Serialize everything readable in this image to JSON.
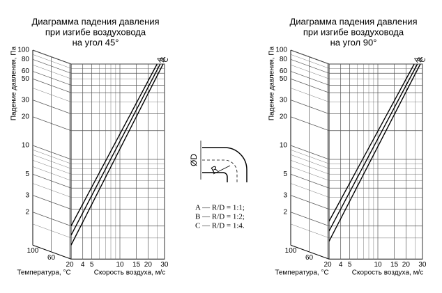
{
  "chart_data": [
    {
      "type": "nomogram",
      "title": [
        "Диаграмма  падения давления",
        "при изгибе воздуховода",
        "на угол 45°"
      ],
      "y_label": "Падение давления, Па",
      "x_label": "Скорость воздуха, м/с",
      "t_label": "Температура, °С",
      "log_scale": true,
      "grid": true,
      "ylim": [
        0.9,
        100
      ],
      "yticks": [
        100,
        80,
        60,
        50,
        30,
        20,
        10,
        5,
        3,
        2
      ],
      "y_minor_ticks": [
        90,
        70,
        40,
        9,
        8,
        7,
        6,
        4,
        1.5
      ],
      "xlim": [
        3,
        30
      ],
      "xticks": [
        4,
        5,
        10,
        15,
        20,
        30
      ],
      "x_minor_ticks": [
        6,
        7,
        8,
        9,
        25
      ],
      "tlim": [
        100,
        20
      ],
      "tticks": [
        100,
        60,
        20
      ],
      "series": [
        {
          "name": "A",
          "color": "#000000",
          "x": [
            3,
            25
          ],
          "values": [
            2.0,
            100
          ]
        },
        {
          "name": "B",
          "color": "#000000",
          "x": [
            3,
            27
          ],
          "values": [
            1.6,
            100
          ]
        },
        {
          "name": "C",
          "color": "#000000",
          "x": [
            3,
            29
          ],
          "values": [
            1.26,
            100
          ]
        }
      ]
    },
    {
      "type": "nomogram",
      "title": [
        "Диаграмма  падения давления",
        "при изгибе воздуховода",
        "на угол 90°"
      ],
      "y_label": "Падение давления, Па",
      "x_label": "Скорость воздуха, м/с",
      "t_label": "Температура, °С",
      "log_scale": true,
      "grid": true,
      "ylim": [
        0.9,
        100
      ],
      "yticks": [
        100,
        80,
        60,
        50,
        30,
        20,
        10,
        5,
        3,
        2
      ],
      "y_minor_ticks": [
        90,
        70,
        40,
        9,
        8,
        7,
        6,
        4,
        1.5
      ],
      "xlim": [
        3,
        30
      ],
      "xticks": [
        4,
        5,
        10,
        15,
        20,
        30
      ],
      "x_minor_ticks": [
        6,
        7,
        8,
        9,
        25
      ],
      "tlim": [
        100,
        20
      ],
      "tticks": [
        100,
        60,
        20
      ],
      "series": [
        {
          "name": "A",
          "color": "#000000",
          "x": [
            3,
            24.5
          ],
          "values": [
            2.24,
            100
          ]
        },
        {
          "name": "B",
          "color": "#000000",
          "x": [
            3,
            26.5
          ],
          "values": [
            1.77,
            100
          ]
        },
        {
          "name": "C",
          "color": "#000000",
          "x": [
            3,
            28.5
          ],
          "values": [
            1.38,
            100
          ]
        }
      ]
    }
  ],
  "diagram": {
    "diameter_label": "ØD",
    "radius_label": "R",
    "notes": [
      "A — R/D = 1:1;",
      "B — R/D = 1:2;",
      "C — R/D = 1:4."
    ]
  }
}
